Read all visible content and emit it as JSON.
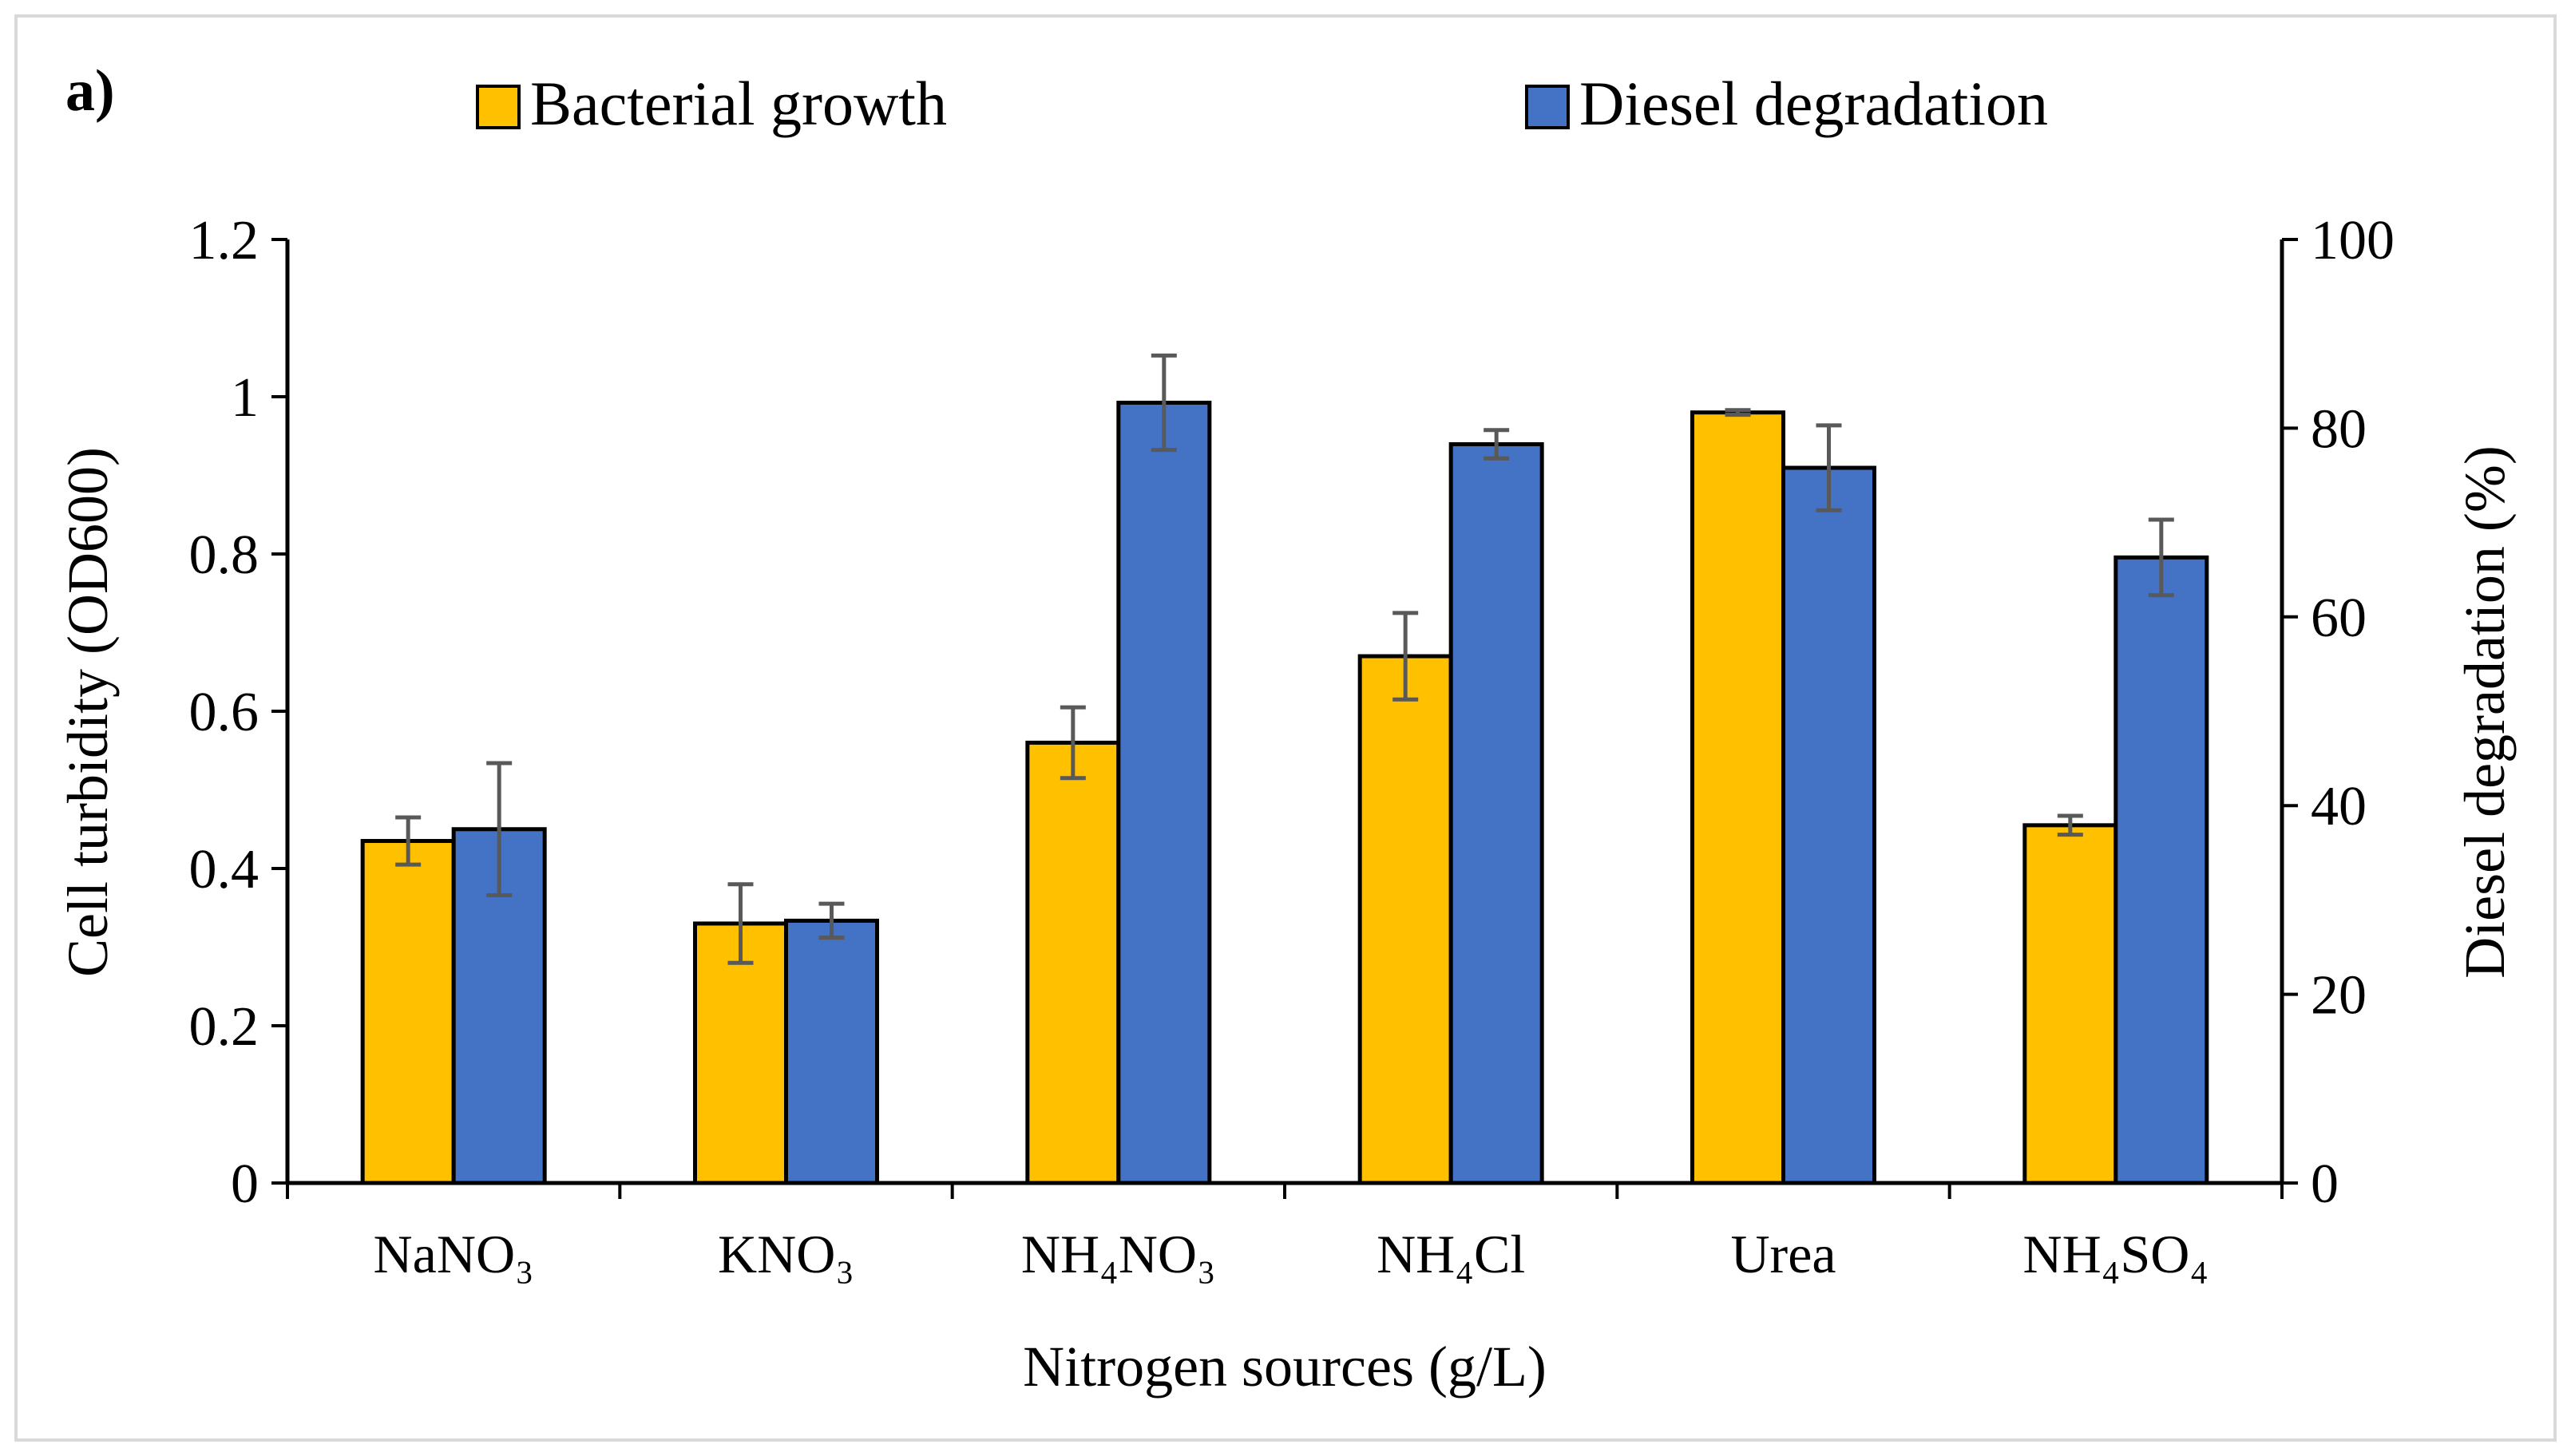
{
  "panel_label": "a)",
  "colors": {
    "bacterial_growth": "#FFC000",
    "diesel_degradation": "#4472C4",
    "bar_outline": "#000000",
    "error_bar": "#595959",
    "frame": "#d9d9d9"
  },
  "chart_data": {
    "type": "bar",
    "title": "",
    "xlabel": "Nitrogen sources (g/L)",
    "ylabel": "Cell turbidity (OD600)",
    "y2label": "Diesel degradation (%)",
    "categories": [
      "NaNO₃",
      "KNO₃",
      "NH₄NO₃",
      "NH₄Cl",
      "Urea",
      "NH₄SO₄"
    ],
    "ylim": [
      0,
      1.2
    ],
    "y_ticks": [
      "0",
      "0.2",
      "0.4",
      "0.6",
      "0.8",
      "1",
      "1.2"
    ],
    "y2lim": [
      0,
      100
    ],
    "y2_ticks": [
      "0",
      "20",
      "40",
      "60",
      "80",
      "100"
    ],
    "legend_position": "top",
    "grid": false,
    "series": [
      {
        "name": "Bacterial growth",
        "axis": "left",
        "color_key": "bacterial_growth",
        "values": [
          0.435,
          0.33,
          0.56,
          0.67,
          0.98,
          0.455
        ],
        "errors": [
          0.03,
          0.05,
          0.045,
          0.055,
          0.003,
          0.012
        ]
      },
      {
        "name": "Diesel degradation",
        "axis": "right",
        "color_key": "diesel_degradation",
        "values": [
          37.5,
          27.8,
          82.7,
          78.3,
          75.8,
          66.3
        ],
        "errors": [
          7.0,
          1.8,
          5.0,
          1.5,
          4.5,
          4.0
        ]
      }
    ]
  }
}
